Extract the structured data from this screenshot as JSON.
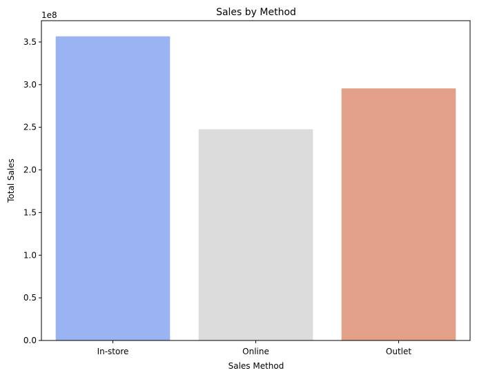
{
  "chart_data": {
    "type": "bar",
    "title": "Sales by Method",
    "xlabel": "Sales Method",
    "ylabel": "Total Sales",
    "y_offset_label": "1e8",
    "categories": [
      "In-store",
      "Online",
      "Outlet"
    ],
    "values": [
      356643750,
      247672882,
      295585493
    ],
    "colors": [
      "#9ab3f2",
      "#dcdcdc",
      "#e3a089"
    ],
    "ylim": [
      0,
      375000000
    ],
    "yticks": [
      0,
      50000000,
      100000000,
      150000000,
      200000000,
      250000000,
      300000000,
      350000000
    ],
    "ytick_labels": [
      "0.0",
      "0.5",
      "1.0",
      "1.5",
      "2.0",
      "2.5",
      "3.0",
      "3.5"
    ],
    "grid": false,
    "legend": "none"
  }
}
